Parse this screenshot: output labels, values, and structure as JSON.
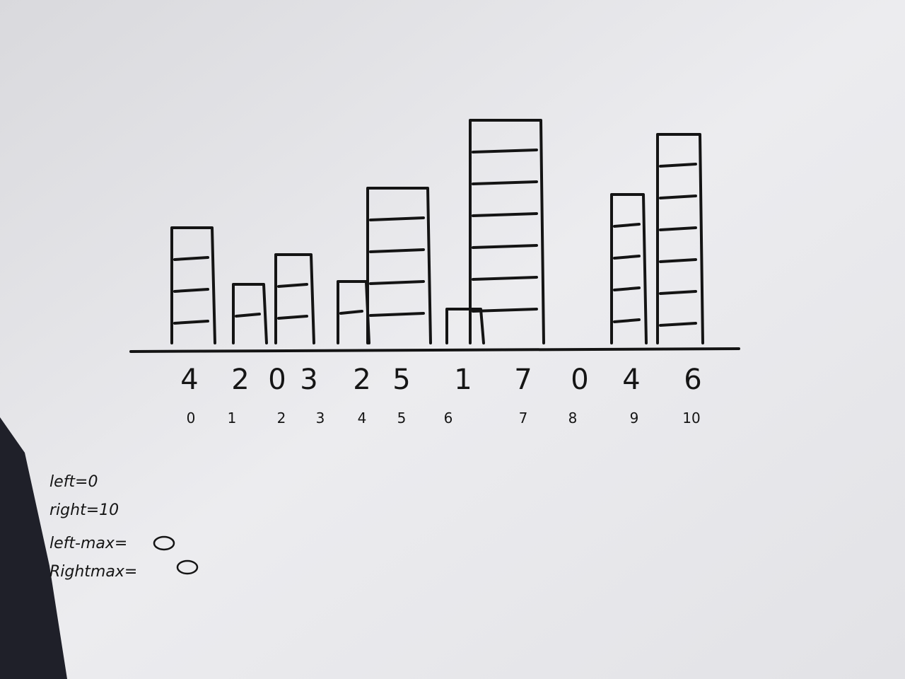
{
  "array": {
    "values": [
      4,
      2,
      0,
      3,
      2,
      5,
      1,
      7,
      0,
      4,
      6
    ],
    "indices": [
      0,
      1,
      2,
      3,
      4,
      5,
      6,
      7,
      8,
      9,
      10
    ]
  },
  "notes": [
    "left=0",
    "right=10",
    "left-max=",
    "Rightmax="
  ]
}
